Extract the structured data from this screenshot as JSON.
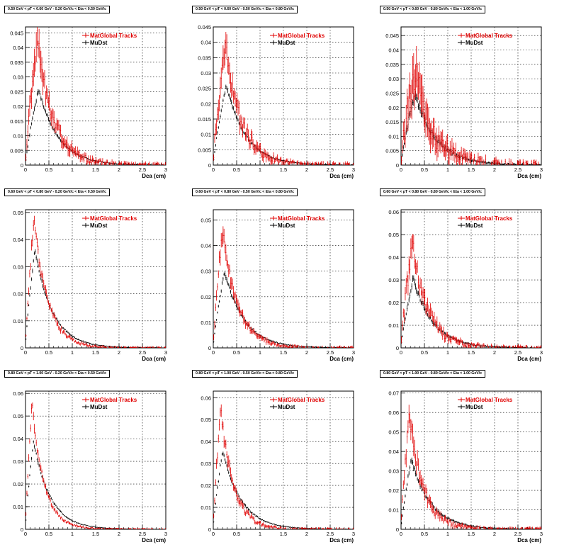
{
  "figure": {
    "rows": 3,
    "cols": 3
  },
  "legend": {
    "matglobal_label": "MatGlobal Tracks",
    "mudst_label": "MuDst",
    "matglobal_color": "#e00000",
    "mudst_color": "#000000"
  },
  "chart_data": [
    {
      "type": "scatter",
      "title": "0.50 GeV < pT < 0.60 GeV -  0.20 GeV/c < Eta < 0.50 GeV/c",
      "xlabel": "Dca (cm)",
      "xlim": [
        0,
        3
      ],
      "ylim": [
        0,
        0.047
      ],
      "xticks": [
        0,
        0.5,
        1,
        1.5,
        2,
        2.5,
        3
      ],
      "yticks": [
        0.005,
        0.01,
        0.015,
        0.02,
        0.025,
        0.03,
        0.035,
        0.04,
        0.045
      ],
      "ytick_labels": [
        "0.005",
        "0.01",
        "0.015",
        "0.02",
        "0.025",
        "0.03",
        "0.035",
        "0.04",
        "0.045"
      ],
      "grid": true,
      "legend_position": "top-right",
      "series": [
        {
          "name": "MatGlobal Tracks",
          "color": "#e00000",
          "peak_x": 0.25,
          "peak_y": 0.043,
          "width": 0.35,
          "noise": 0.004,
          "err": 0.0045
        },
        {
          "name": "MuDst",
          "color": "#000000",
          "peak_x": 0.28,
          "peak_y": 0.026,
          "width": 0.42,
          "noise": 0.0006,
          "err": 0.0008
        }
      ]
    },
    {
      "type": "scatter",
      "title": "0.50 GeV < pT < 0.60 GeV -  0.50 GeV/c < Eta < 0.80 GeV/c",
      "xlabel": "Dca (cm)",
      "xlim": [
        0,
        3
      ],
      "ylim": [
        0,
        0.045
      ],
      "xticks": [
        0,
        0.5,
        1,
        1.5,
        2,
        2.5,
        3
      ],
      "yticks": [
        0.005,
        0.01,
        0.015,
        0.02,
        0.025,
        0.03,
        0.035,
        0.04,
        0.045
      ],
      "ytick_labels": [
        "0.005",
        "0.01",
        "0.015",
        "0.02",
        "0.025",
        "0.03",
        "0.035",
        "0.04",
        "0.045"
      ],
      "grid": true,
      "legend_position": "top-right",
      "series": [
        {
          "name": "MatGlobal Tracks",
          "color": "#e00000",
          "peak_x": 0.25,
          "peak_y": 0.039,
          "width": 0.35,
          "noise": 0.004,
          "err": 0.004
        },
        {
          "name": "MuDst",
          "color": "#000000",
          "peak_x": 0.28,
          "peak_y": 0.026,
          "width": 0.42,
          "noise": 0.0006,
          "err": 0.0008
        }
      ]
    },
    {
      "type": "scatter",
      "title": "0.50 GeV < pT < 0.60 GeV -  0.80 GeV/c < Eta < 1.00 GeV/c",
      "xlabel": "Dca (cm)",
      "xlim": [
        0,
        3
      ],
      "ylim": [
        0,
        0.048
      ],
      "xticks": [
        0,
        0.5,
        1,
        1.5,
        2,
        2.5,
        3
      ],
      "yticks": [
        0.005,
        0.01,
        0.015,
        0.02,
        0.025,
        0.03,
        0.035,
        0.04,
        0.045
      ],
      "ytick_labels": [
        "0.005",
        "0.01",
        "0.015",
        "0.02",
        "0.025",
        "0.03",
        "0.035",
        "0.04",
        "0.045"
      ],
      "grid": true,
      "legend_position": "top-right",
      "series": [
        {
          "name": "MatGlobal Tracks",
          "color": "#e00000",
          "peak_x": 0.28,
          "peak_y": 0.033,
          "width": 0.4,
          "noise": 0.007,
          "err": 0.007
        },
        {
          "name": "MuDst",
          "color": "#000000",
          "peak_x": 0.3,
          "peak_y": 0.025,
          "width": 0.45,
          "noise": 0.0012,
          "err": 0.0015
        }
      ]
    },
    {
      "type": "scatter",
      "title": "0.60 GeV < pT < 0.80 GeV -  0.20 GeV/c < Eta < 0.50 GeV/c",
      "xlabel": "Dca (cm)",
      "xlim": [
        0,
        3
      ],
      "ylim": [
        0,
        0.051
      ],
      "xticks": [
        0,
        0.5,
        1,
        1.5,
        2,
        2.5,
        3
      ],
      "yticks": [
        0.01,
        0.02,
        0.03,
        0.04,
        0.05
      ],
      "ytick_labels": [
        "0.01",
        "0.02",
        "0.03",
        "0.04",
        "0.05"
      ],
      "grid": true,
      "legend_position": "top-right",
      "series": [
        {
          "name": "MatGlobal Tracks",
          "color": "#e00000",
          "peak_x": 0.18,
          "peak_y": 0.047,
          "width": 0.3,
          "noise": 0.002,
          "err": 0.002
        },
        {
          "name": "MuDst",
          "color": "#000000",
          "peak_x": 0.2,
          "peak_y": 0.036,
          "width": 0.38,
          "noise": 0.0006,
          "err": 0.0008
        }
      ]
    },
    {
      "type": "scatter",
      "title": "0.60 GeV < pT < 0.80 GeV -  0.50 GeV/c < Eta < 0.80 GeV/c",
      "xlabel": "Dca (cm)",
      "xlim": [
        0,
        3
      ],
      "ylim": [
        0,
        0.054
      ],
      "xticks": [
        0,
        0.5,
        1,
        1.5,
        2,
        2.5,
        3
      ],
      "yticks": [
        0.01,
        0.02,
        0.03,
        0.04,
        0.05
      ],
      "ytick_labels": [
        "0.01",
        "0.02",
        "0.03",
        "0.04",
        "0.05"
      ],
      "grid": true,
      "legend_position": "top-right",
      "series": [
        {
          "name": "MatGlobal Tracks",
          "color": "#e00000",
          "peak_x": 0.2,
          "peak_y": 0.047,
          "width": 0.32,
          "noise": 0.003,
          "err": 0.003
        },
        {
          "name": "MuDst",
          "color": "#000000",
          "peak_x": 0.24,
          "peak_y": 0.03,
          "width": 0.42,
          "noise": 0.0007,
          "err": 0.0009
        }
      ]
    },
    {
      "type": "scatter",
      "title": "0.60 GeV < pT < 0.80 GeV -  0.80 GeV/c < Eta < 1.00 GeV/c",
      "xlabel": "Dca (cm)",
      "xlim": [
        0,
        3
      ],
      "ylim": [
        0,
        0.061
      ],
      "xticks": [
        0,
        0.5,
        1,
        1.5,
        2,
        2.5,
        3
      ],
      "yticks": [
        0.01,
        0.02,
        0.03,
        0.04,
        0.05,
        0.06
      ],
      "ytick_labels": [
        "0.01",
        "0.02",
        "0.03",
        "0.04",
        "0.05",
        "0.06"
      ],
      "grid": true,
      "legend_position": "top-right",
      "series": [
        {
          "name": "MatGlobal Tracks",
          "color": "#e00000",
          "peak_x": 0.24,
          "peak_y": 0.046,
          "width": 0.34,
          "noise": 0.005,
          "err": 0.0045
        },
        {
          "name": "MuDst",
          "color": "#000000",
          "peak_x": 0.26,
          "peak_y": 0.031,
          "width": 0.42,
          "noise": 0.0012,
          "err": 0.0014
        }
      ]
    },
    {
      "type": "scatter",
      "title": "0.80 GeV < pT < 1.00 GeV -  0.20 GeV/c < Eta < 0.50 GeV/c",
      "xlabel": "Dca (cm)",
      "xlim": [
        0,
        3
      ],
      "ylim": [
        0,
        0.061
      ],
      "xticks": [
        0,
        0.5,
        1,
        1.5,
        2,
        2.5,
        3
      ],
      "yticks": [
        0.01,
        0.02,
        0.03,
        0.04,
        0.05,
        0.06
      ],
      "ytick_labels": [
        "0.01",
        "0.02",
        "0.03",
        "0.04",
        "0.05",
        "0.06"
      ],
      "grid": true,
      "legend_position": "top-right",
      "series": [
        {
          "name": "MatGlobal Tracks",
          "color": "#e00000",
          "peak_x": 0.14,
          "peak_y": 0.055,
          "width": 0.26,
          "noise": 0.002,
          "err": 0.002
        },
        {
          "name": "MuDst",
          "color": "#000000",
          "peak_x": 0.17,
          "peak_y": 0.039,
          "width": 0.36,
          "noise": 0.0006,
          "err": 0.0008
        }
      ]
    },
    {
      "type": "scatter",
      "title": "0.80 GeV < pT < 1.00 GeV -  0.50 GeV/c < Eta < 0.80 GeV/c",
      "xlabel": "Dca (cm)",
      "xlim": [
        0,
        3
      ],
      "ylim": [
        0,
        0.063
      ],
      "xticks": [
        0,
        0.5,
        1,
        1.5,
        2,
        2.5,
        3
      ],
      "yticks": [
        0.01,
        0.02,
        0.03,
        0.04,
        0.05,
        0.06
      ],
      "ytick_labels": [
        "0.01",
        "0.02",
        "0.03",
        "0.04",
        "0.05",
        "0.06"
      ],
      "grid": true,
      "legend_position": "top-right",
      "series": [
        {
          "name": "MatGlobal Tracks",
          "color": "#e00000",
          "peak_x": 0.16,
          "peak_y": 0.054,
          "width": 0.28,
          "noise": 0.003,
          "err": 0.003
        },
        {
          "name": "MuDst",
          "color": "#000000",
          "peak_x": 0.2,
          "peak_y": 0.036,
          "width": 0.4,
          "noise": 0.0007,
          "err": 0.0009
        }
      ]
    },
    {
      "type": "scatter",
      "title": "0.80 GeV < pT < 1.00 GeV -  0.80 GeV/c < Eta < 1.00 GeV/c",
      "xlabel": "Dca (cm)",
      "xlim": [
        0,
        3
      ],
      "ylim": [
        0,
        0.071
      ],
      "xticks": [
        0,
        0.5,
        1,
        1.5,
        2,
        2.5,
        3
      ],
      "yticks": [
        0.01,
        0.02,
        0.03,
        0.04,
        0.05,
        0.06,
        0.07
      ],
      "ytick_labels": [
        "0.01",
        "0.02",
        "0.03",
        "0.04",
        "0.05",
        "0.06",
        "0.07"
      ],
      "grid": true,
      "legend_position": "top-right",
      "series": [
        {
          "name": "MatGlobal Tracks",
          "color": "#e00000",
          "peak_x": 0.18,
          "peak_y": 0.058,
          "width": 0.3,
          "noise": 0.005,
          "err": 0.005
        },
        {
          "name": "MuDst",
          "color": "#000000",
          "peak_x": 0.22,
          "peak_y": 0.036,
          "width": 0.42,
          "noise": 0.0012,
          "err": 0.0015
        }
      ]
    }
  ]
}
